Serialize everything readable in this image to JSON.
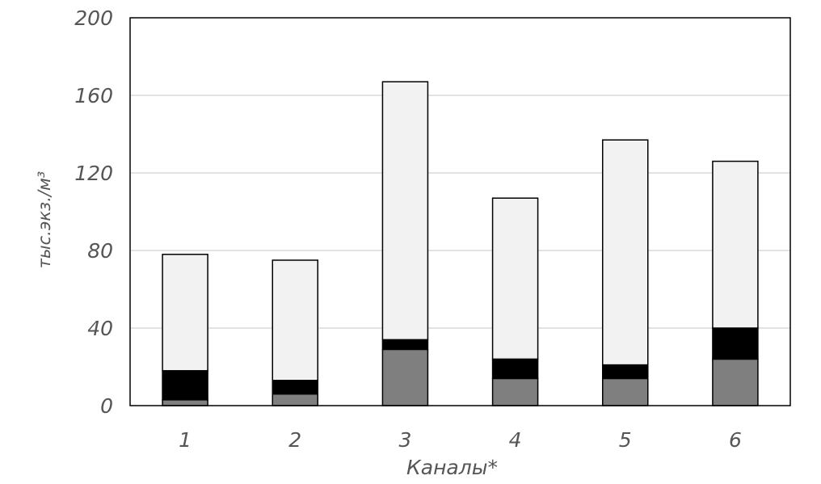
{
  "chart_data": {
    "type": "bar",
    "stacked": true,
    "title": "",
    "xlabel": "Каналы*",
    "ylabel": "тыс.экз./м³",
    "ylim": [
      0,
      200
    ],
    "yticks": [
      0,
      40,
      80,
      120,
      160,
      200
    ],
    "grid": true,
    "legend": "none",
    "categories": [
      "1",
      "2",
      "3",
      "4",
      "5",
      "6"
    ],
    "series": [
      {
        "color": "#7f7f7f",
        "values": [
          3,
          6,
          29,
          14,
          14,
          24
        ]
      },
      {
        "color": "#000000",
        "values": [
          15,
          7,
          5,
          10,
          7,
          16
        ]
      },
      {
        "color": "#f2f2f2",
        "values": [
          60,
          62,
          133,
          83,
          116,
          86
        ]
      }
    ]
  }
}
